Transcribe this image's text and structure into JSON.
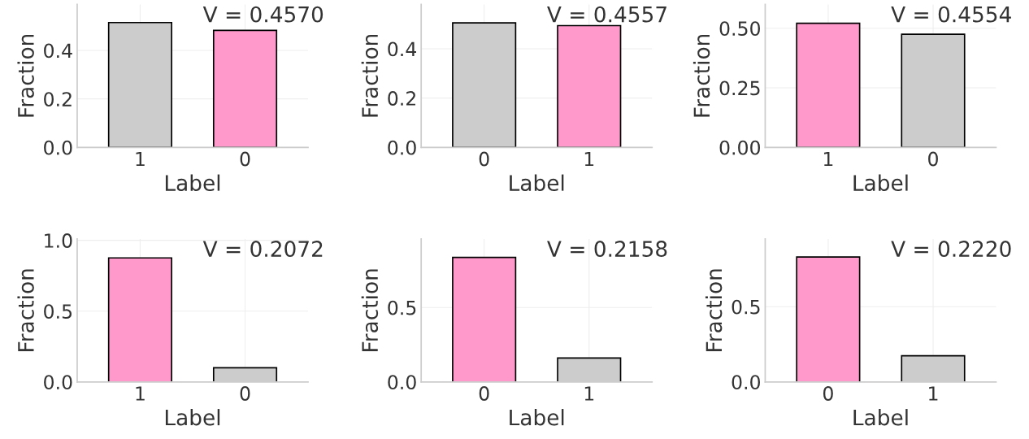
{
  "chart_data": [
    {
      "type": "bar",
      "categories": [
        "1",
        "0"
      ],
      "values": [
        0.515,
        0.483
      ],
      "colors": [
        "#cccccc",
        "#ff99cb"
      ],
      "xlabel": "Label",
      "ylabel": "Fraction",
      "ylim": [
        0,
        0.59
      ],
      "yticks": [
        {
          "value": 0,
          "label": "0.0"
        },
        {
          "value": 0.2,
          "label": "0.2"
        },
        {
          "value": 0.4,
          "label": "0.4"
        }
      ],
      "grid": true,
      "annotations": [
        "V = 0.4570"
      ]
    },
    {
      "type": "bar",
      "categories": [
        "0",
        "1"
      ],
      "values": [
        0.505,
        0.494
      ],
      "colors": [
        "#cccccc",
        "#ff99cb"
      ],
      "xlabel": "Label",
      "ylabel": "Fraction",
      "ylim": [
        0,
        0.58
      ],
      "yticks": [
        {
          "value": 0,
          "label": "0.0"
        },
        {
          "value": 0.2,
          "label": "0.2"
        },
        {
          "value": 0.4,
          "label": "0.4"
        }
      ],
      "grid": true,
      "annotations": [
        "V = 0.4557"
      ]
    },
    {
      "type": "bar",
      "categories": [
        "1",
        "0"
      ],
      "values": [
        0.521,
        0.475
      ],
      "colors": [
        "#ff99cb",
        "#cccccc"
      ],
      "xlabel": "Label",
      "ylabel": "Fraction",
      "ylim": [
        0,
        0.6
      ],
      "yticks": [
        {
          "value": 0,
          "label": "0.00"
        },
        {
          "value": 0.25,
          "label": "0.25"
        },
        {
          "value": 0.5,
          "label": "0.50"
        }
      ],
      "grid": true,
      "annotations": [
        "V = 0.4554"
      ]
    },
    {
      "type": "bar",
      "categories": [
        "1",
        "0"
      ],
      "values": [
        0.876,
        0.1
      ],
      "colors": [
        "#ff99cb",
        "#cccccc"
      ],
      "xlabel": "Label",
      "ylabel": "Fraction",
      "ylim": [
        0,
        1.01
      ],
      "yticks": [
        {
          "value": 0,
          "label": "0.0"
        },
        {
          "value": 0.5,
          "label": "0.5"
        },
        {
          "value": 1,
          "label": "1.0"
        }
      ],
      "grid": true,
      "annotations": [
        "V = 0.2072"
      ]
    },
    {
      "type": "bar",
      "categories": [
        "0",
        "1"
      ],
      "values": [
        0.836,
        0.161
      ],
      "colors": [
        "#ff99cb",
        "#cccccc"
      ],
      "xlabel": "Label",
      "ylabel": "Fraction",
      "ylim": [
        0,
        0.96
      ],
      "yticks": [
        {
          "value": 0,
          "label": "0.0"
        },
        {
          "value": 0.5,
          "label": "0.5"
        }
      ],
      "grid": true,
      "annotations": [
        "V = 0.2158"
      ]
    },
    {
      "type": "bar",
      "categories": [
        "0",
        "1"
      ],
      "values": [
        0.83,
        0.174
      ],
      "colors": [
        "#ff99cb",
        "#cccccc"
      ],
      "xlabel": "Label",
      "ylabel": "Fraction",
      "ylim": [
        0,
        0.95
      ],
      "yticks": [
        {
          "value": 0,
          "label": "0.0"
        },
        {
          "value": 0.5,
          "label": "0.5"
        }
      ],
      "grid": true,
      "annotations": [
        "V = 0.2220"
      ]
    }
  ]
}
